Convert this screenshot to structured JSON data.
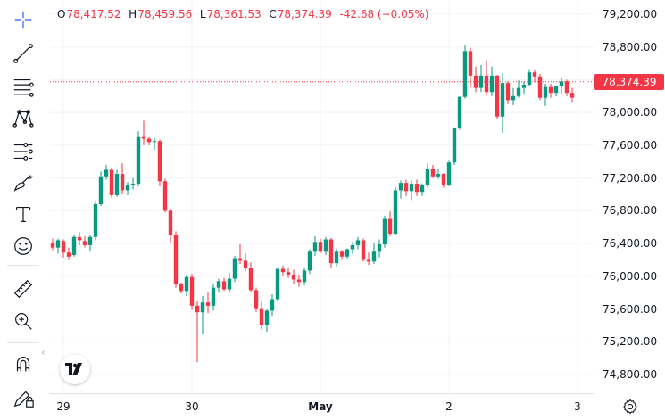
{
  "symbol_legend": {
    "open_key": "O",
    "open": "78,417.52",
    "high_key": "H",
    "high": "78,459.56",
    "low_key": "L",
    "low": "78,361.53",
    "close_key": "C",
    "close": "78,374.39",
    "change": "-42.68 (−0.05%)"
  },
  "last_price_label": "78,374.39",
  "last_price_value": 78374.39,
  "colors": {
    "up": "#089981",
    "down": "#f23645",
    "grid": "#f0f3fa",
    "axis_text": "#131722"
  },
  "toolbar": {
    "tools": [
      "crosshair-icon",
      "trend-line-icon",
      "fib-retracement-icon",
      "pattern-icon",
      "prediction-icon",
      "brush-icon",
      "text-icon",
      "emoji-icon",
      "ruler-icon",
      "zoom-in-icon",
      "magnet-icon",
      "lock-edit-icon"
    ],
    "collapse_glyph": "‹"
  },
  "chart_data": {
    "type": "candlestick",
    "y_ticks": [
      "79,200.00",
      "78,800.00",
      "78,400.00",
      "78,000.00",
      "77,600.00",
      "77,200.00",
      "76,800.00",
      "76,400.00",
      "76,000.00",
      "75,600.00",
      "75,200.00",
      "74,800.00"
    ],
    "y_tick_values": [
      79200,
      78800,
      78400,
      78000,
      77600,
      77200,
      76800,
      76400,
      76000,
      75600,
      75200,
      74800
    ],
    "x_ticks": [
      {
        "label": "29",
        "bold": false,
        "index": 2
      },
      {
        "label": "30",
        "bold": false,
        "index": 26
      },
      {
        "label": "May",
        "bold": true,
        "index": 50
      },
      {
        "label": "2",
        "bold": false,
        "index": 74
      },
      {
        "label": "3",
        "bold": false,
        "index": 98
      }
    ],
    "bars_visible": 96,
    "candles": [
      [
        76400,
        76460,
        76320,
        76350
      ],
      [
        76350,
        76460,
        76280,
        76440
      ],
      [
        76430,
        76450,
        76230,
        76290
      ],
      [
        76290,
        76350,
        76200,
        76240
      ],
      [
        76260,
        76500,
        76240,
        76480
      ],
      [
        76480,
        76540,
        76380,
        76440
      ],
      [
        76430,
        76490,
        76350,
        76380
      ],
      [
        76380,
        76510,
        76300,
        76480
      ],
      [
        76480,
        76920,
        76440,
        76880
      ],
      [
        76880,
        77280,
        76860,
        77220
      ],
      [
        77220,
        77360,
        77180,
        77300
      ],
      [
        77300,
        77330,
        76960,
        76990
      ],
      [
        76990,
        77300,
        76970,
        77250
      ],
      [
        77250,
        77380,
        77010,
        77050
      ],
      [
        77050,
        77150,
        76990,
        77120
      ],
      [
        77120,
        77200,
        77060,
        77130
      ],
      [
        77130,
        77770,
        77100,
        77700
      ],
      [
        77700,
        77900,
        77600,
        77680
      ],
      [
        77680,
        77700,
        77600,
        77640
      ],
      [
        77640,
        77690,
        77540,
        77650
      ],
      [
        77650,
        77670,
        77100,
        77160
      ],
      [
        77160,
        77190,
        76780,
        76800
      ],
      [
        76800,
        76830,
        76410,
        76500
      ],
      [
        76500,
        76550,
        75860,
        75900
      ],
      [
        75900,
        75920,
        75790,
        75820
      ],
      [
        75820,
        76020,
        75760,
        75990
      ],
      [
        75990,
        76030,
        75590,
        75640
      ],
      [
        75640,
        75700,
        74950,
        75560
      ],
      [
        75560,
        75760,
        75300,
        75680
      ],
      [
        75680,
        75800,
        75550,
        75640
      ],
      [
        75640,
        75900,
        75580,
        75860
      ],
      [
        75860,
        75970,
        75800,
        75940
      ],
      [
        75940,
        75980,
        75820,
        75840
      ],
      [
        75840,
        76040,
        75800,
        75970
      ],
      [
        75970,
        76250,
        75930,
        76220
      ],
      [
        76220,
        76390,
        76150,
        76190
      ],
      [
        76190,
        76280,
        76060,
        76100
      ],
      [
        76100,
        76170,
        75800,
        75830
      ],
      [
        75830,
        75860,
        75560,
        75610
      ],
      [
        75610,
        75690,
        75350,
        75410
      ],
      [
        75410,
        75600,
        75320,
        75580
      ],
      [
        75580,
        75780,
        75520,
        75720
      ],
      [
        75720,
        76110,
        75700,
        76090
      ],
      [
        76090,
        76130,
        76000,
        76050
      ],
      [
        76050,
        76100,
        75980,
        76020
      ],
      [
        76020,
        76080,
        75900,
        75960
      ],
      [
        75960,
        76020,
        75870,
        75930
      ],
      [
        75930,
        76100,
        75890,
        76070
      ],
      [
        76070,
        76330,
        76030,
        76300
      ],
      [
        76300,
        76490,
        76250,
        76420
      ],
      [
        76420,
        76460,
        76280,
        76300
      ],
      [
        76300,
        76480,
        76260,
        76450
      ],
      [
        76450,
        76470,
        76100,
        76160
      ],
      [
        76160,
        76340,
        76120,
        76300
      ],
      [
        76300,
        76320,
        76200,
        76240
      ],
      [
        76240,
        76340,
        76210,
        76330
      ],
      [
        76330,
        76420,
        76270,
        76380
      ],
      [
        76380,
        76480,
        76330,
        76440
      ],
      [
        76440,
        76460,
        76180,
        76200
      ],
      [
        76200,
        76290,
        76140,
        76180
      ],
      [
        76180,
        76400,
        76150,
        76300
      ],
      [
        76300,
        76450,
        76230,
        76390
      ],
      [
        76390,
        76740,
        76350,
        76700
      ],
      [
        76700,
        76790,
        76490,
        76520
      ],
      [
        76520,
        77090,
        76500,
        77050
      ],
      [
        77050,
        77170,
        76950,
        77140
      ],
      [
        77140,
        77180,
        76980,
        77040
      ],
      [
        77040,
        77170,
        76930,
        77130
      ],
      [
        77130,
        77180,
        76980,
        77030
      ],
      [
        77030,
        77130,
        76980,
        77110
      ],
      [
        77110,
        77380,
        77080,
        77310
      ],
      [
        77310,
        77360,
        77200,
        77220
      ],
      [
        77220,
        77310,
        77190,
        77250
      ],
      [
        77250,
        77260,
        77080,
        77120
      ],
      [
        77120,
        77420,
        77100,
        77390
      ],
      [
        77390,
        77820,
        77360,
        77810
      ],
      [
        77810,
        78200,
        77790,
        78190
      ],
      [
        78190,
        78820,
        78170,
        78750
      ],
      [
        78750,
        78790,
        78300,
        78450
      ],
      [
        78450,
        78560,
        78250,
        78300
      ],
      [
        78300,
        78580,
        78250,
        78450
      ],
      [
        78450,
        78640,
        78210,
        78250
      ],
      [
        78250,
        78560,
        78200,
        78450
      ],
      [
        78450,
        78460,
        77920,
        77950
      ],
      [
        77950,
        78480,
        77750,
        78360
      ],
      [
        78360,
        78380,
        78100,
        78150
      ],
      [
        78150,
        78300,
        78090,
        78200
      ],
      [
        78200,
        78390,
        78180,
        78300
      ],
      [
        78300,
        78380,
        78230,
        78340
      ],
      [
        78340,
        78530,
        78320,
        78490
      ],
      [
        78490,
        78520,
        78370,
        78440
      ],
      [
        78440,
        78470,
        78150,
        78180
      ],
      [
        78180,
        78350,
        78080,
        78310
      ],
      [
        78310,
        78350,
        78180,
        78240
      ],
      [
        78240,
        78330,
        78200,
        78320
      ],
      [
        78320,
        78420,
        78230,
        78380
      ],
      [
        78380,
        78400,
        78200,
        78240
      ],
      [
        78240,
        78300,
        78130,
        78180
      ],
      [
        78180,
        78380,
        78130,
        78330
      ],
      [
        78330,
        78400,
        78280,
        78260
      ],
      [
        78260,
        78290,
        78170,
        78200
      ],
      [
        78200,
        78390,
        78140,
        78370
      ],
      [
        78370,
        78420,
        78330,
        78400
      ],
      [
        78417.52,
        78459.56,
        78361.53,
        78374.39
      ]
    ]
  }
}
